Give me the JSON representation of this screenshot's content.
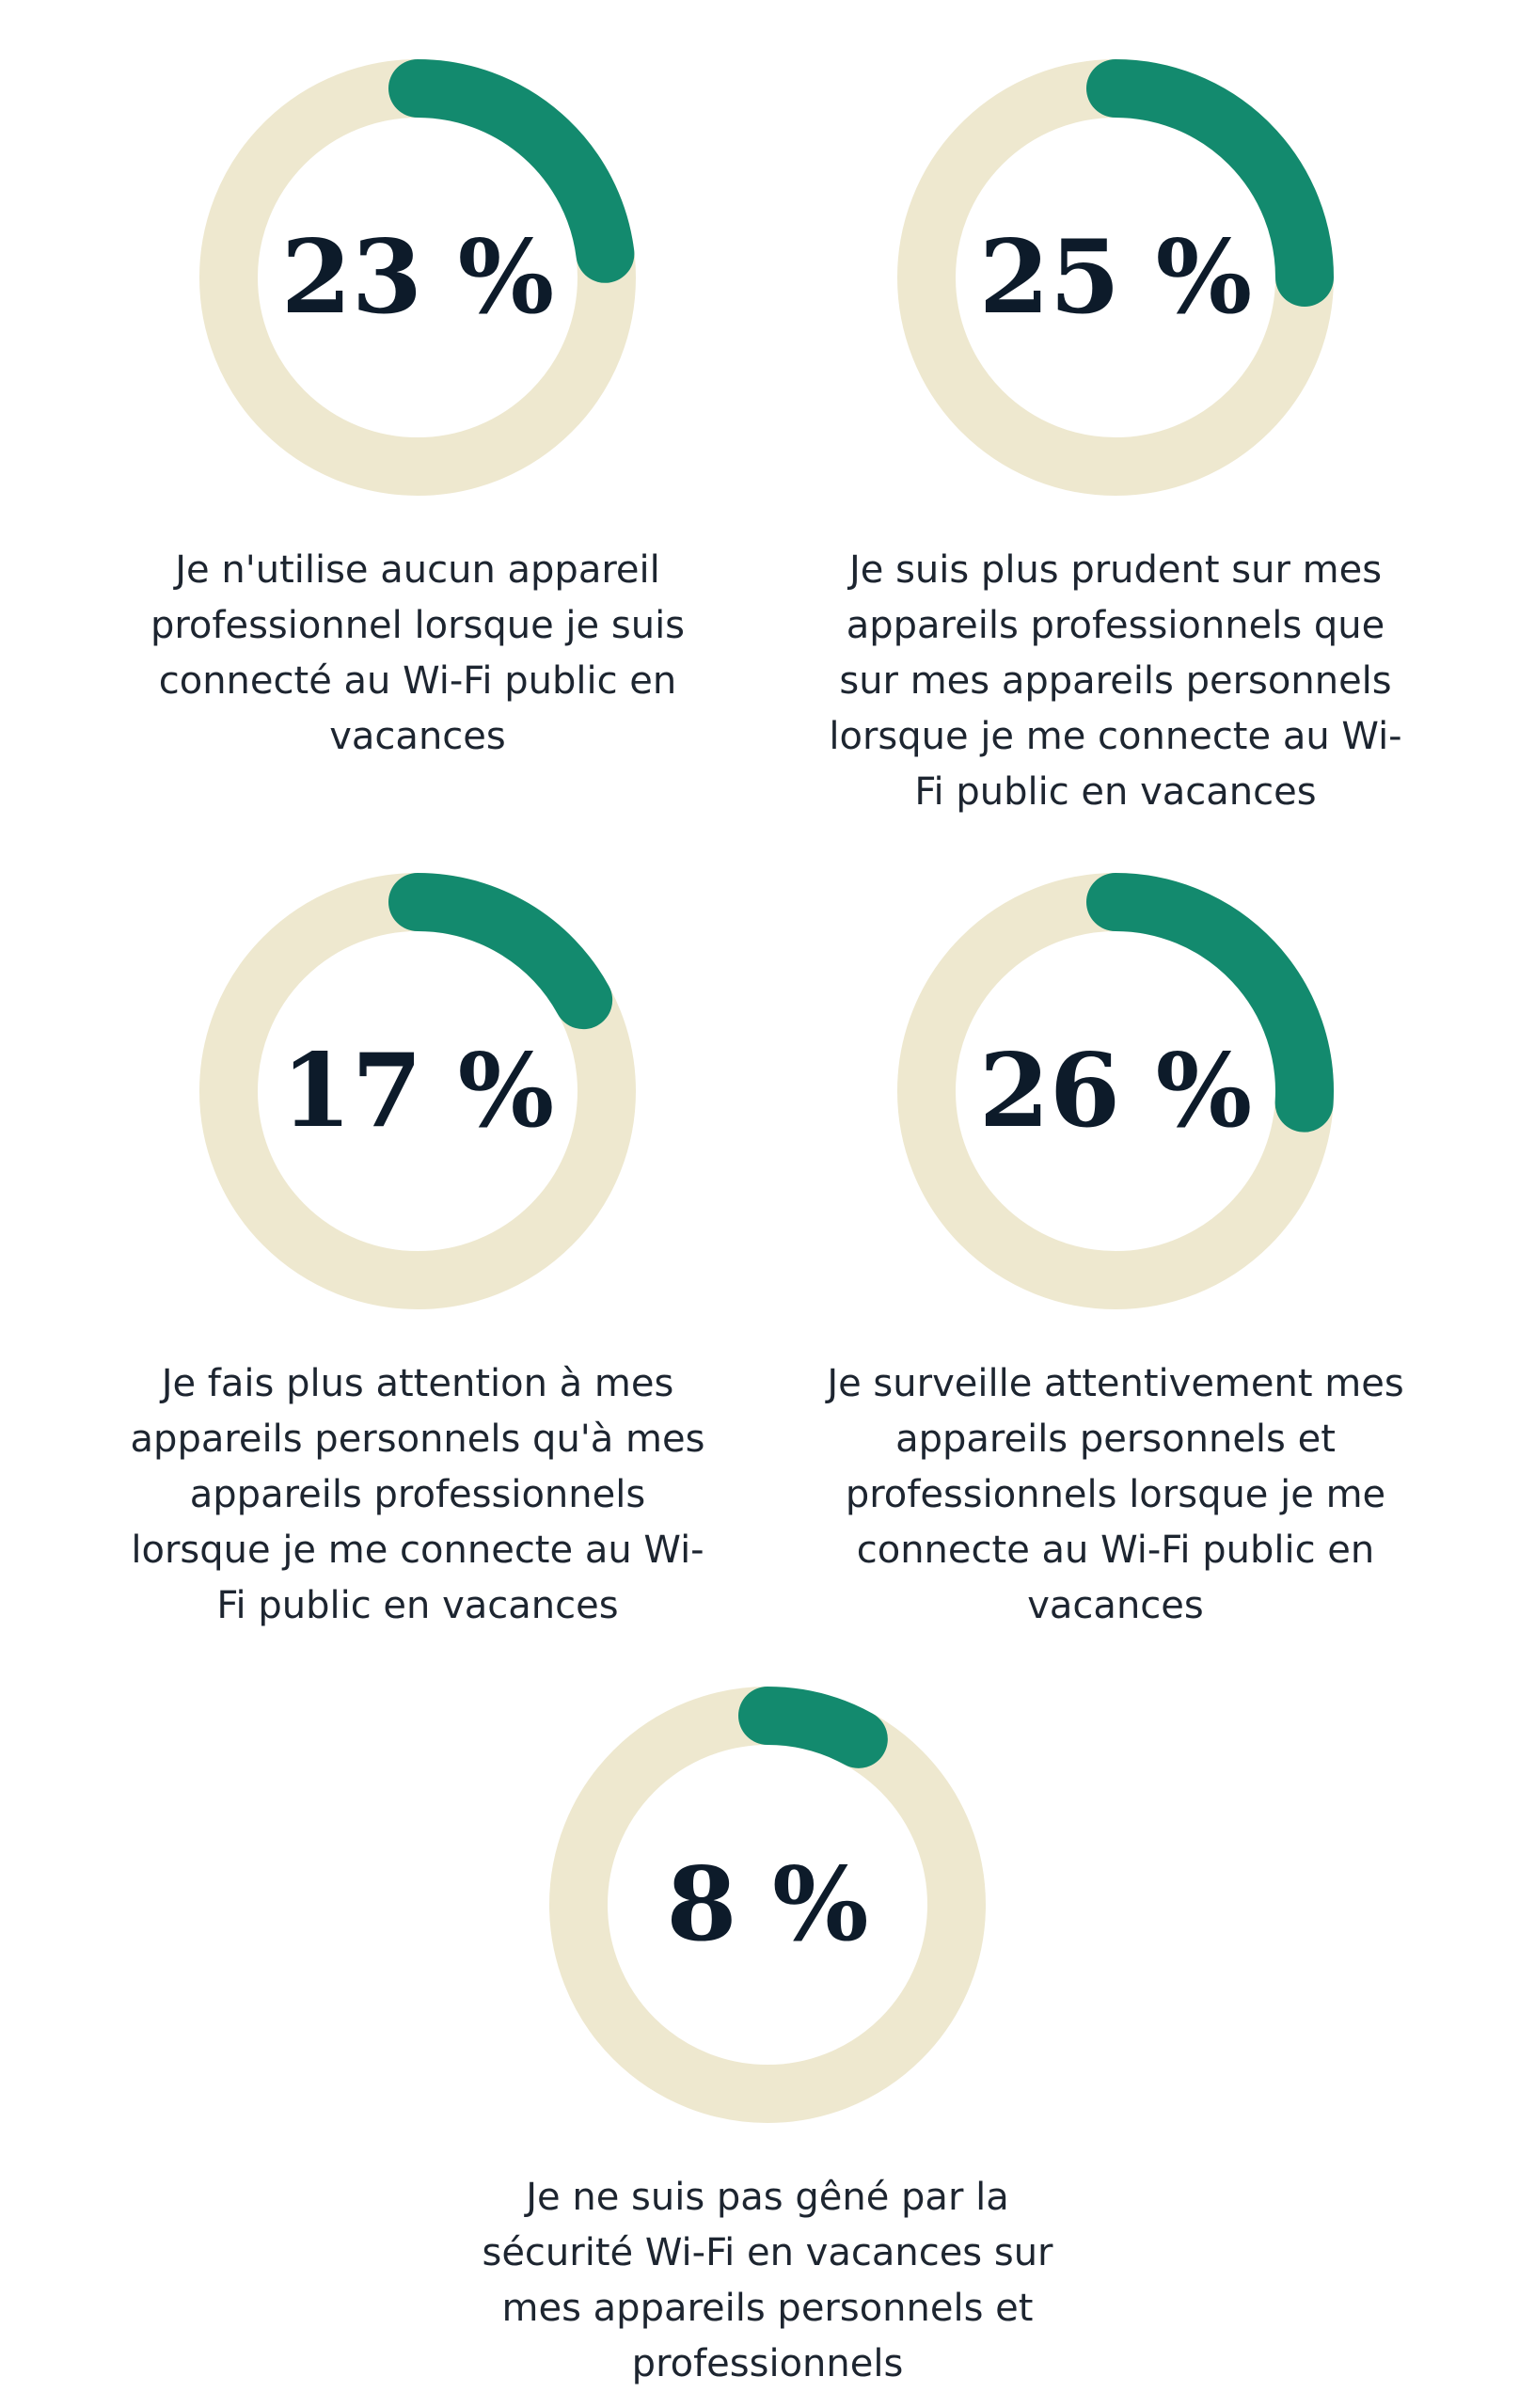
{
  "chart_data": [
    {
      "type": "donut",
      "values": [
        23
      ],
      "value_labels": [
        "23 %"
      ],
      "title": "Je n'utilise aucun appareil professionnel lorsque je suis connecté au Wi-Fi public en vacances",
      "color": "#138a6e",
      "track_color": "#eee8cf"
    },
    {
      "type": "donut",
      "values": [
        25
      ],
      "value_labels": [
        "25 %"
      ],
      "title": "Je suis plus prudent sur mes appareils professionnels que sur mes appareils personnels lorsque je me connecte au Wi-Fi public en vacances",
      "color": "#138a6e",
      "track_color": "#eee8cf"
    },
    {
      "type": "donut",
      "values": [
        17
      ],
      "value_labels": [
        "17 %"
      ],
      "title": "Je fais plus attention à mes appareils personnels qu'à mes appareils professionnels lorsque je me connecte au Wi-Fi public en vacances",
      "color": "#138a6e",
      "track_color": "#eee8cf"
    },
    {
      "type": "donut",
      "values": [
        26
      ],
      "value_labels": [
        "26 %"
      ],
      "title": "Je surveille attentivement mes appareils personnels et professionnels lorsque je me connecte au Wi-Fi public en vacances",
      "color": "#138a6e",
      "track_color": "#eee8cf"
    },
    {
      "type": "donut",
      "values": [
        8
      ],
      "value_labels": [
        "8 %"
      ],
      "title": "Je ne suis pas gêné par la sécurité Wi-Fi en vacances sur mes appareils personnels et professionnels",
      "color": "#138a6e",
      "track_color": "#eee8cf"
    }
  ]
}
